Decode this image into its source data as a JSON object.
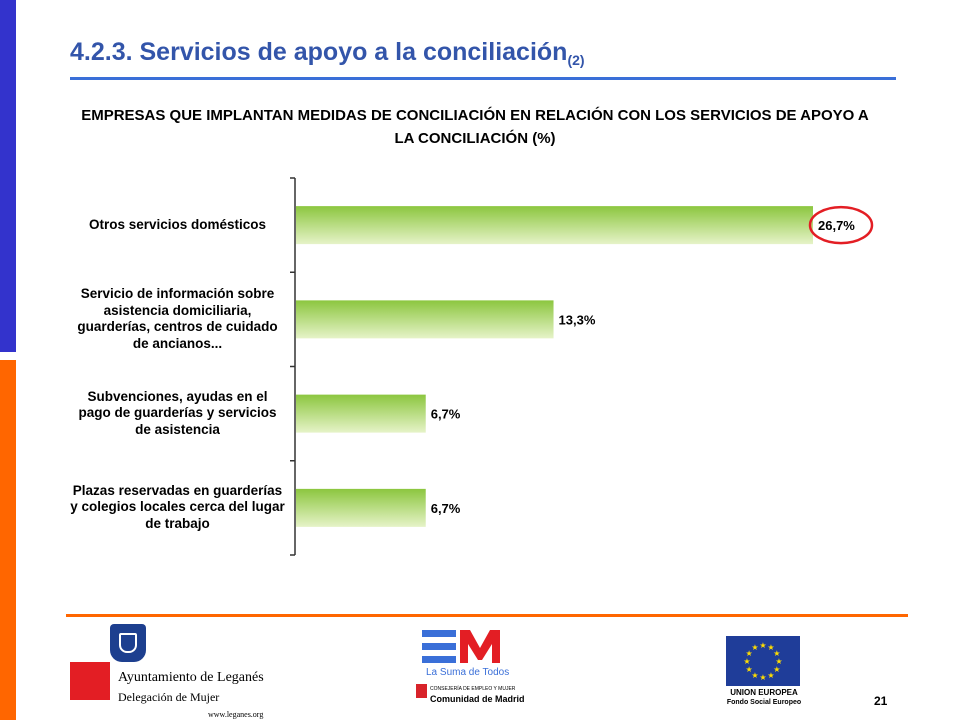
{
  "slide": {
    "title": "4.2.3. Servicios de apoyo a la conciliación",
    "title_sub": "(2)",
    "page_number": "21"
  },
  "chart_data": {
    "type": "bar",
    "orientation": "horizontal",
    "title": "EMPRESAS QUE IMPLANTAN MEDIDAS DE CONCILIACIÓN EN RELACIÓN CON LOS SERVICIOS DE APOYO A LA CONCILIACIÓN (%)",
    "categories": [
      "Otros servicios domésticos",
      "Servicio de información sobre asistencia domiciliaria, guarderías, centros de cuidado de ancianos...",
      "Subvenciones, ayudas en el pago de guarderías y servicios de asistencia",
      "Plazas reservadas en guarderías y colegios locales cerca del lugar de trabajo"
    ],
    "values": [
      26.7,
      13.3,
      6.7,
      6.7
    ],
    "value_labels": [
      "26,7%",
      "13,3%",
      "6,7%",
      "6,7%"
    ],
    "xlim": [
      0,
      26.7
    ],
    "grid": false,
    "bar_color": "#8cc63f",
    "highlight_color": "#e31e24",
    "highlight_index": 0
  },
  "footer": {
    "leganes": {
      "name": "Ayuntamiento de Leganés",
      "sub": "Delegación de Mujer",
      "web": "www.leganes.org",
      "accent": "#e31e24"
    },
    "madrid": {
      "tagline": "La Suma de Todos",
      "dept": "CONSEJERÍA DE EMPLEO Y MUJER",
      "name": "Comunidad de Madrid",
      "brand": "#3a6fd8"
    },
    "eu": {
      "title": "UNION EUROPEA",
      "sub": "Fondo Social Europeo",
      "flag_blue": "#1f3d99",
      "star_color": "#ffdd00"
    },
    "rule_color": "#ff6600"
  }
}
